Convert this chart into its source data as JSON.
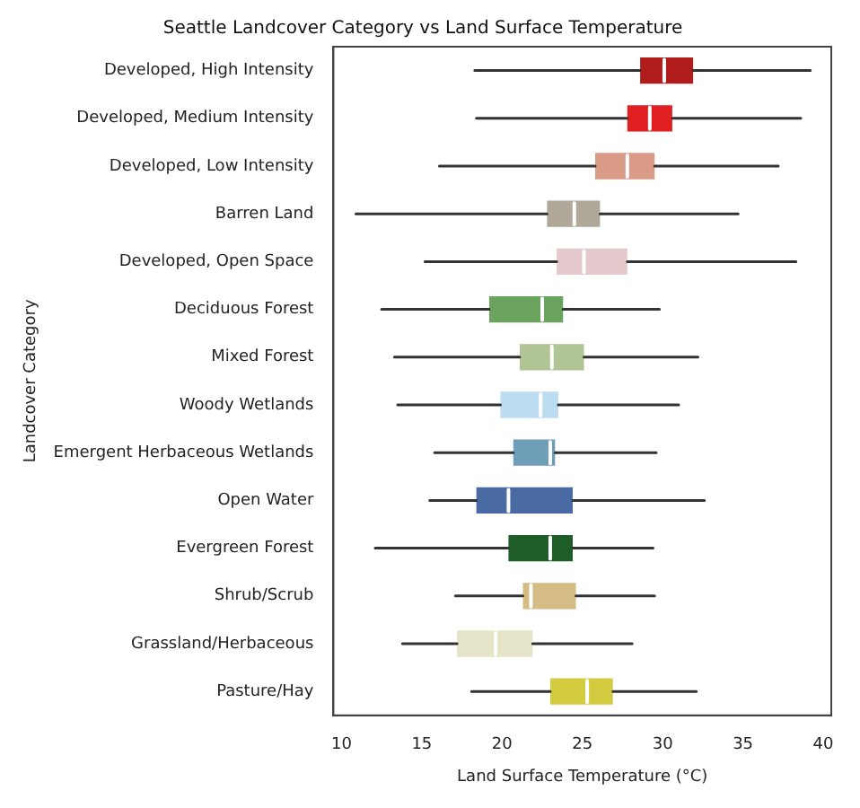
{
  "chart_data": {
    "type": "box",
    "orientation": "horizontal",
    "title": "Seattle Landcover Category vs Land Surface Temperature",
    "xlabel": "Land Surface Temperature (°C)",
    "ylabel": "Landcover Category",
    "categories": [
      "Developed, High Intensity",
      "Developed, Medium Intensity",
      "Developed, Low Intensity",
      "Barren Land",
      "Developed, Open Space",
      "Deciduous Forest",
      "Mixed Forest",
      "Woody Wetlands",
      "Emergent Herbaceous Wetlands",
      "Open Water",
      "Evergreen Forest",
      "Shrub/Scrub",
      "Grassland/Herbaceous",
      "Pasture/Hay"
    ],
    "colors": [
      "#b01c1c",
      "#e02020",
      "#d99a88",
      "#b0a898",
      "#e3c8cc",
      "#6aa35e",
      "#b0c494",
      "#bcdcf0",
      "#6e9eb8",
      "#4a6aa4",
      "#1e5c28",
      "#d4bc84",
      "#e6e4c8",
      "#d4cc40"
    ],
    "boxes": [
      {
        "low": 18.3,
        "q1": 28.6,
        "median": 30.1,
        "q3": 31.9,
        "high": 39.2
      },
      {
        "low": 18.4,
        "q1": 27.8,
        "median": 29.2,
        "q3": 30.6,
        "high": 38.6
      },
      {
        "low": 16.1,
        "q1": 25.8,
        "median": 27.8,
        "q3": 29.5,
        "high": 37.2
      },
      {
        "low": 10.9,
        "q1": 22.8,
        "median": 24.5,
        "q3": 26.1,
        "high": 34.7
      },
      {
        "low": 15.2,
        "q1": 23.4,
        "median": 25.1,
        "q3": 27.8,
        "high": 38.3
      },
      {
        "low": 12.5,
        "q1": 19.2,
        "median": 22.5,
        "q3": 23.8,
        "high": 29.8
      },
      {
        "low": 13.3,
        "q1": 21.1,
        "median": 23.1,
        "q3": 25.1,
        "high": 32.2
      },
      {
        "low": 13.5,
        "q1": 19.9,
        "median": 22.4,
        "q3": 23.5,
        "high": 31.0
      },
      {
        "low": 15.8,
        "q1": 20.7,
        "median": 23.0,
        "q3": 23.3,
        "high": 29.6
      },
      {
        "low": 15.5,
        "q1": 18.4,
        "median": 20.4,
        "q3": 24.4,
        "high": 32.6
      },
      {
        "low": 12.1,
        "q1": 20.4,
        "median": 23.0,
        "q3": 24.4,
        "high": 29.4
      },
      {
        "low": 17.1,
        "q1": 21.3,
        "median": 21.8,
        "q3": 24.6,
        "high": 29.5
      },
      {
        "low": 13.8,
        "q1": 17.2,
        "median": 19.6,
        "q3": 21.9,
        "high": 28.1
      },
      {
        "low": 18.1,
        "q1": 23.0,
        "median": 25.3,
        "q3": 26.9,
        "high": 32.1
      }
    ],
    "xlim": [
      9.5,
      40.5
    ],
    "xticks": [
      10,
      15,
      20,
      25,
      30,
      35,
      40
    ],
    "grid": false,
    "legend": false
  }
}
